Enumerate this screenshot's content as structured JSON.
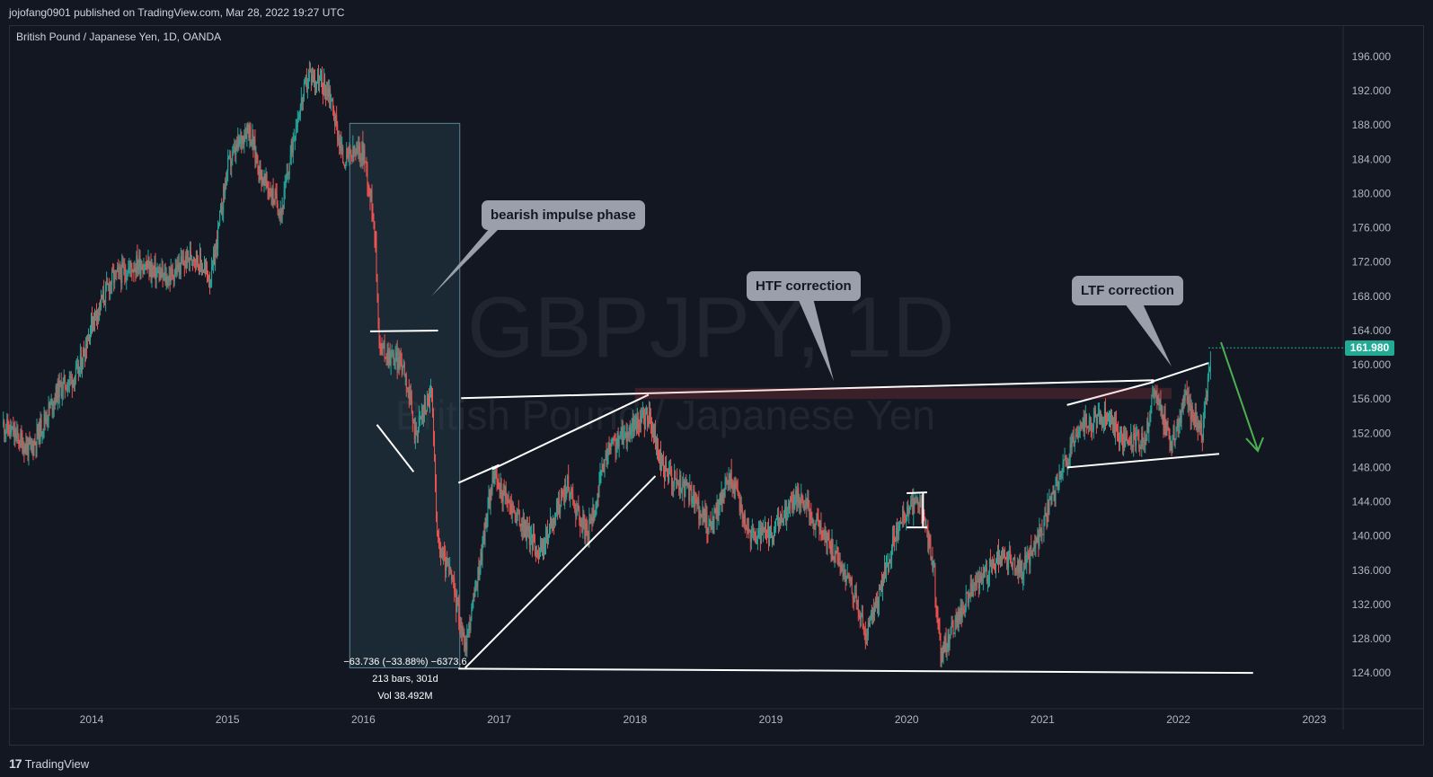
{
  "header": {
    "publisher": "jojofang0901 published on TradingView.com, Mar 28, 2022 19:27 UTC"
  },
  "chart_title": "British Pound / Japanese Yen, 1D, OANDA",
  "watermark": {
    "symbol": "GBPJPY, 1D",
    "name": "British Pound / Japanese Yen"
  },
  "annotations": {
    "bearish": "bearish impulse phase",
    "htf": "HTF correction",
    "ltf": "LTF correction"
  },
  "measurement": {
    "change": "−63.736 (−33.88%) −6373.6",
    "bars": "213 bars, 301d",
    "vol": "Vol 38.492M"
  },
  "current_price": "161.980",
  "footer": {
    "logo": "17",
    "brand": "TradingView"
  },
  "colors": {
    "up": "#26a69a",
    "down": "#ef5350",
    "background": "#131722",
    "line": "#ffffff",
    "arrow": "#4caf50"
  },
  "chart_data": {
    "type": "candlestick",
    "title": "British Pound / Japanese Yen, 1D, OANDA",
    "x_ticks": [
      "2014",
      "2015",
      "2016",
      "2017",
      "2018",
      "2019",
      "2020",
      "2021",
      "2022",
      "2023"
    ],
    "y_ticks": [
      196,
      192,
      188,
      184,
      180,
      176,
      172,
      168,
      164,
      160,
      156,
      152,
      148,
      144,
      140,
      136,
      132,
      128,
      124
    ],
    "ylim": [
      121.5,
      198.5
    ],
    "xlim": [
      2013.35,
      2023.25
    ],
    "grid": false,
    "last_price": 161.98,
    "price_path": [
      [
        2013.35,
        153
      ],
      [
        2013.55,
        150
      ],
      [
        2013.75,
        157
      ],
      [
        2013.9,
        159
      ],
      [
        2014.0,
        165
      ],
      [
        2014.15,
        170
      ],
      [
        2014.35,
        172
      ],
      [
        2014.55,
        170
      ],
      [
        2014.75,
        173
      ],
      [
        2014.88,
        170
      ],
      [
        2015.0,
        183
      ],
      [
        2015.15,
        188
      ],
      [
        2015.25,
        182
      ],
      [
        2015.4,
        178
      ],
      [
        2015.5,
        188
      ],
      [
        2015.6,
        194
      ],
      [
        2015.75,
        192
      ],
      [
        2015.85,
        184
      ],
      [
        2016.0,
        185
      ],
      [
        2016.08,
        177
      ],
      [
        2016.12,
        162
      ],
      [
        2016.3,
        160
      ],
      [
        2016.38,
        152
      ],
      [
        2016.5,
        157
      ],
      [
        2016.55,
        139
      ],
      [
        2016.65,
        135
      ],
      [
        2016.75,
        127
      ],
      [
        2016.85,
        136
      ],
      [
        2016.95,
        147
      ],
      [
        2017.3,
        138
      ],
      [
        2017.5,
        146
      ],
      [
        2017.65,
        140
      ],
      [
        2017.8,
        150
      ],
      [
        2018.0,
        153
      ],
      [
        2018.1,
        154
      ],
      [
        2018.2,
        148
      ],
      [
        2018.4,
        145
      ],
      [
        2018.55,
        141
      ],
      [
        2018.7,
        147
      ],
      [
        2018.85,
        140
      ],
      [
        2019.0,
        140
      ],
      [
        2019.2,
        145
      ],
      [
        2019.4,
        140
      ],
      [
        2019.6,
        134
      ],
      [
        2019.7,
        128
      ],
      [
        2019.95,
        142
      ],
      [
        2020.1,
        144
      ],
      [
        2020.2,
        136
      ],
      [
        2020.25,
        126
      ],
      [
        2020.45,
        133
      ],
      [
        2020.7,
        138
      ],
      [
        2020.85,
        136
      ],
      [
        2021.0,
        141
      ],
      [
        2021.15,
        148
      ],
      [
        2021.3,
        153
      ],
      [
        2021.45,
        154
      ],
      [
        2021.6,
        151
      ],
      [
        2021.75,
        151
      ],
      [
        2021.82,
        157
      ],
      [
        2021.95,
        151
      ],
      [
        2022.05,
        156
      ],
      [
        2022.18,
        152
      ],
      [
        2022.24,
        162
      ]
    ]
  }
}
